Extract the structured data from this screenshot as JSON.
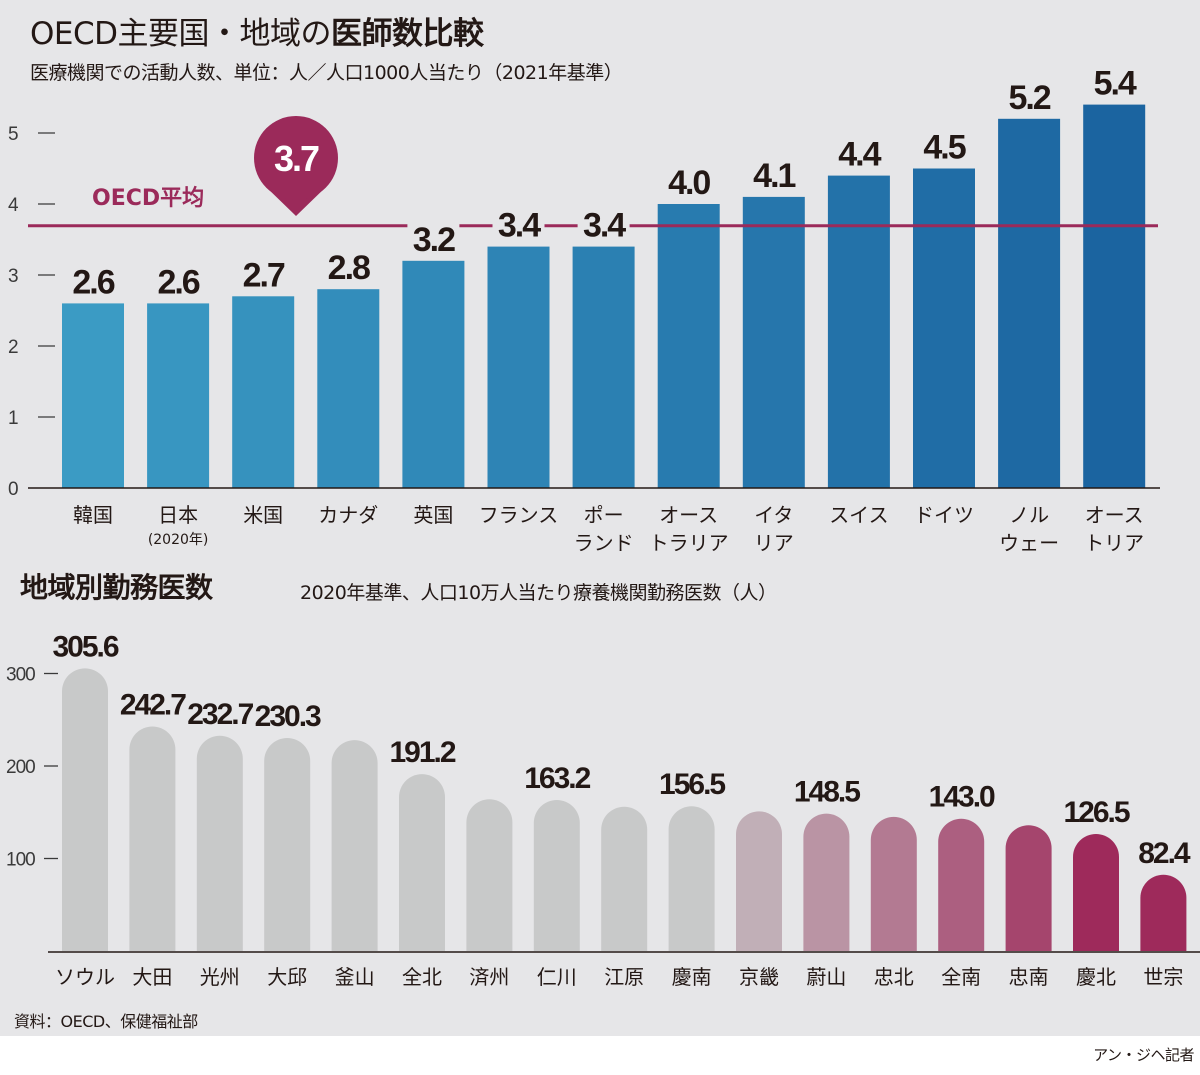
{
  "header": {
    "title_regular": "OECD主要国・地域の",
    "title_bold": "医師数比較",
    "subtitle": "医療機関での活動人数、単位：人／人口1000人当たり（2021年基準）"
  },
  "section2": {
    "title": "地域別勤務医数",
    "subtitle": "2020年基準、人口10万人当たり療養機関勤務医数（人）"
  },
  "footer": {
    "source": "資料：OECD、保健福祉部",
    "credit": "アン・ジヘ記者"
  },
  "colors": {
    "bar_blue_light": "#3b9bc4",
    "bar_blue_dark": "#1b64a0",
    "avg_line": "#9b2a5a",
    "gray_bar": "#c8c9c9",
    "magenta_bar": "#9e2a5b",
    "background": "#e6e6e8"
  },
  "chart_data": [
    {
      "type": "bar",
      "title": "OECD主要国・地域の医師数比較",
      "ylabel": "人／人口1000人当たり",
      "ylim": [
        0,
        5.5
      ],
      "yticks": [
        "0",
        "1",
        "2",
        "3",
        "4",
        "5"
      ],
      "categories": [
        "韓国",
        "日本",
        "米国",
        "カナダ",
        "英国",
        "フランス",
        "ポーランド",
        "オーストラリア",
        "イタリア",
        "スイス",
        "ドイツ",
        "ノルウェー",
        "オーストリア"
      ],
      "category_lines": [
        [
          "韓国"
        ],
        [
          "日本",
          "(2020年)"
        ],
        [
          "米国"
        ],
        [
          "カナダ"
        ],
        [
          "英国"
        ],
        [
          "フランス"
        ],
        [
          "ポー",
          "ランド"
        ],
        [
          "オース",
          "トラリア"
        ],
        [
          "イタ",
          "リア"
        ],
        [
          "スイス"
        ],
        [
          "ドイツ"
        ],
        [
          "ノル",
          "ウェー"
        ],
        [
          "オース",
          "トリア"
        ]
      ],
      "values": [
        2.6,
        2.6,
        2.7,
        2.8,
        3.2,
        3.4,
        3.4,
        4.0,
        4.1,
        4.4,
        4.5,
        5.2,
        5.4
      ],
      "value_labels": [
        "2.6",
        "2.6",
        "2.7",
        "2.8",
        "3.2",
        "3.4",
        "3.4",
        "4.0",
        "4.1",
        "4.4",
        "4.5",
        "5.2",
        "5.4"
      ],
      "reference_line": {
        "label": "OECD平均",
        "value": 3.7,
        "value_label": "3.7"
      },
      "grid": false
    },
    {
      "type": "bar",
      "title": "地域別勤務医数",
      "ylabel": "人口10万人当たり療養機関勤務医数（人）",
      "ylim": [
        0,
        330
      ],
      "yticks": [
        "100",
        "200",
        "300"
      ],
      "categories": [
        "ソウル",
        "大田",
        "光州",
        "大邱",
        "釜山",
        "全北",
        "済州",
        "仁川",
        "江原",
        "慶南",
        "京畿",
        "蔚山",
        "忠北",
        "全南",
        "忠南",
        "慶北",
        "世宗"
      ],
      "values": [
        305.6,
        242.7,
        232.7,
        230.3,
        228,
        191.2,
        164,
        163.2,
        156,
        156.5,
        151,
        148.5,
        145,
        143.0,
        136,
        126.5,
        82.4
      ],
      "value_labels": [
        "305.6",
        "242.7",
        "232.7",
        "230.3",
        "",
        "191.2",
        "",
        "163.2",
        "",
        "156.5",
        "",
        "148.5",
        "",
        "143.0",
        "",
        "126.5",
        "82.4"
      ],
      "grid": false
    }
  ]
}
